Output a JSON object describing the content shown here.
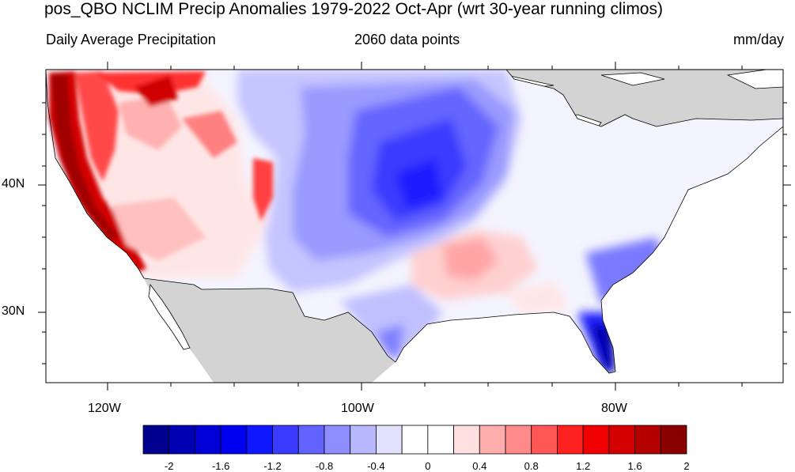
{
  "title": "pos_QBO NCLIM Precip Anomalies 1979-2022 Oct-Apr (wrt 30-year running climos)",
  "subtitle_left": "Daily Average Precipitation",
  "subtitle_center": "2060 data points",
  "subtitle_right": "mm/day",
  "lat_labels": [
    "40N",
    "30N"
  ],
  "lon_labels": [
    "120W",
    "100W",
    "80W"
  ],
  "colorbar": {
    "colors": [
      "#00008f",
      "#0000b3",
      "#0000d6",
      "#0000f0",
      "#0f17ff",
      "#3b3bff",
      "#6262ff",
      "#8e8eff",
      "#b8b8ff",
      "#e2e2ff",
      "#ffffff",
      "#ffffff",
      "#ffe0e0",
      "#ffadad",
      "#ff8a8a",
      "#ff5656",
      "#ff2020",
      "#f00000",
      "#d40000",
      "#b50000",
      "#8a0000"
    ],
    "labels": [
      "-2",
      "-1.6",
      "-1.2",
      "-0.8",
      "-0.4",
      "0",
      "0.4",
      "0.8",
      "1.2",
      "1.6",
      "2"
    ]
  },
  "colors": {
    "land_masked": "#d3d3d3",
    "ocean": "#ffffff",
    "border": "#000000"
  }
}
